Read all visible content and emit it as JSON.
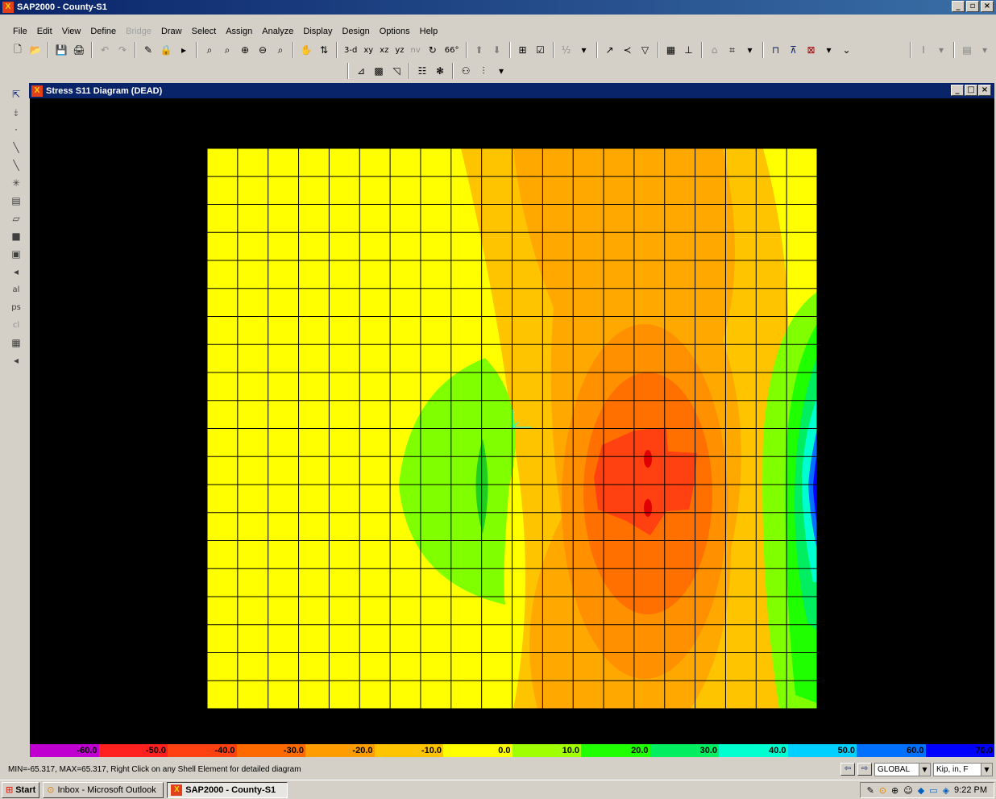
{
  "app": {
    "title": "SAP2000 - County-S1",
    "icon": "sap2000-logo-icon"
  },
  "menu": [
    "File",
    "Edit",
    "View",
    "Define",
    "Bridge",
    "Draw",
    "Select",
    "Assign",
    "Analyze",
    "Display",
    "Design",
    "Options",
    "Help"
  ],
  "menu_disabled": [
    "Bridge"
  ],
  "toolbar": {
    "view_3d": "3-d",
    "view_xy": "xy",
    "view_xz": "xz",
    "view_yz": "yz",
    "view_nv": "nv",
    "view_rotate": "66°"
  },
  "child_window": {
    "title": "Stress S11 Diagram  (DEAD)"
  },
  "legend": {
    "labels": [
      "-60.0",
      "-50.0",
      "-40.0",
      "-30.0",
      "-20.0",
      "-10.0",
      "0.0",
      "10.0",
      "20.0",
      "30.0",
      "40.0",
      "50.0",
      "60.0",
      "70.0"
    ],
    "colors": [
      "#c000d0",
      "#ff2020",
      "#ff4010",
      "#ff6a00",
      "#ff9c00",
      "#ffc400",
      "#ffff00",
      "#a0ff00",
      "#20ff00",
      "#00ee60",
      "#00ffd0",
      "#00d0ff",
      "#0070ff",
      "#0000ff"
    ]
  },
  "status": {
    "message": "MIN=-65.317, MAX=65.317, Right Click on any Shell Element for detailed diagram",
    "coord_system": "GLOBAL",
    "units": "Kip, in, F"
  },
  "taskbar": {
    "start": "Start",
    "tasks": [
      {
        "label": "Inbox - Microsoft Outlook",
        "icon": "outlook-icon"
      },
      {
        "label": "SAP2000 - County-S1",
        "icon": "sap2000-logo-icon"
      }
    ],
    "clock": "9:22 PM"
  }
}
